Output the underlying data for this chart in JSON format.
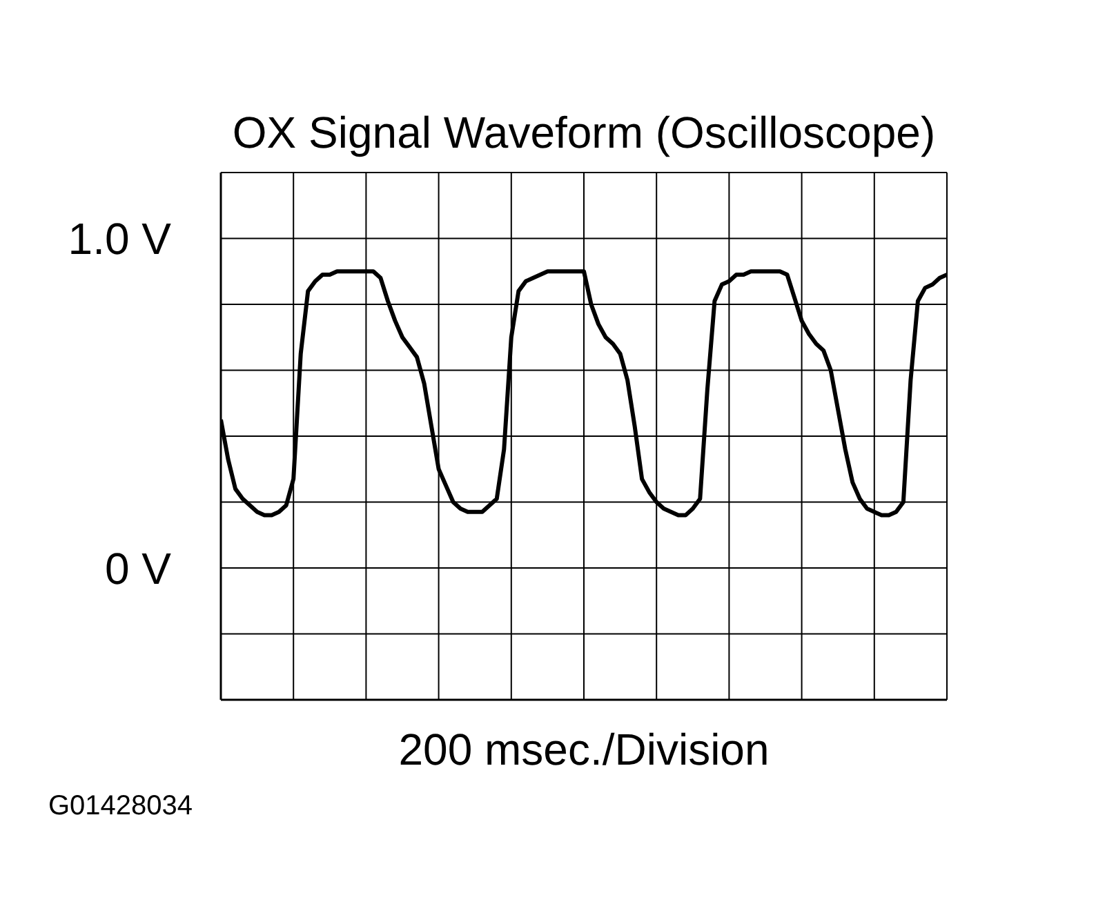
{
  "chart_data": {
    "type": "line",
    "title": "OX Signal Waveform (Oscilloscope)",
    "xlabel": "200 msec./Division",
    "categories": [
      null,
      null,
      null,
      null,
      null,
      null,
      null,
      null,
      null,
      null,
      null,
      null,
      null,
      null,
      null,
      null,
      null,
      null,
      null,
      null,
      null,
      null,
      null,
      null,
      null,
      null,
      null,
      null,
      null,
      null,
      null,
      null,
      null,
      null,
      null,
      null,
      null,
      null,
      null,
      null,
      null,
      null,
      null,
      null,
      null,
      null,
      null,
      null,
      null,
      null,
      null,
      null,
      null,
      null,
      null,
      null,
      null,
      null,
      null,
      null,
      null,
      null,
      null,
      null,
      null,
      null,
      null,
      null,
      null,
      null,
      null,
      null,
      null,
      null,
      null,
      null,
      null,
      null,
      null,
      null,
      null,
      null,
      null,
      null,
      null,
      null,
      null,
      null,
      null,
      null,
      null,
      null,
      null,
      null,
      null,
      null,
      null,
      null,
      null,
      null,
      null
    ],
    "series": [
      {
        "color": "#000000",
        "values": [
          0.45,
          0.33,
          0.24,
          0.21,
          0.19,
          0.17,
          0.16,
          0.16,
          0.17,
          0.19,
          0.27,
          0.65,
          0.84,
          0.87,
          0.89,
          0.89,
          0.9,
          0.9,
          0.9,
          0.9,
          0.9,
          0.9,
          0.88,
          0.81,
          0.75,
          0.7,
          0.67,
          0.64,
          0.56,
          0.43,
          0.3,
          0.25,
          0.2,
          0.18,
          0.17,
          0.17,
          0.17,
          0.19,
          0.21,
          0.36,
          0.7,
          0.84,
          0.87,
          0.88,
          0.89,
          0.9,
          0.9,
          0.9,
          0.9,
          0.9,
          0.9,
          0.8,
          0.74,
          0.7,
          0.68,
          0.65,
          0.57,
          0.43,
          0.27,
          0.23,
          0.2,
          0.18,
          0.17,
          0.16,
          0.16,
          0.18,
          0.21,
          0.54,
          0.81,
          0.86,
          0.87,
          0.89,
          0.89,
          0.9,
          0.9,
          0.9,
          0.9,
          0.9,
          0.89,
          0.82,
          0.75,
          0.71,
          0.68,
          0.66,
          0.6,
          0.48,
          0.36,
          0.26,
          0.21,
          0.18,
          0.17,
          0.16,
          0.16,
          0.17,
          0.2,
          0.57,
          0.81,
          0.85,
          0.86,
          0.88,
          0.89
        ]
      }
    ],
    "ylim": [
      -0.4,
      1.2
    ],
    "yticks": [
      {
        "value": -0.4,
        "label": null
      },
      {
        "value": -0.2,
        "label": null
      },
      {
        "value": 0,
        "label": "0 V"
      },
      {
        "value": 0.2,
        "label": null
      },
      {
        "value": 0.4,
        "label": null
      },
      {
        "value": 0.6,
        "label": null
      },
      {
        "value": 0.8,
        "label": null
      },
      {
        "value": 1.0,
        "label": "1.0 V"
      },
      {
        "value": 1.2,
        "label": null
      }
    ],
    "grid": true,
    "marker": "none",
    "tick_labels": "y",
    "annotations": [
      "G01428034"
    ]
  }
}
